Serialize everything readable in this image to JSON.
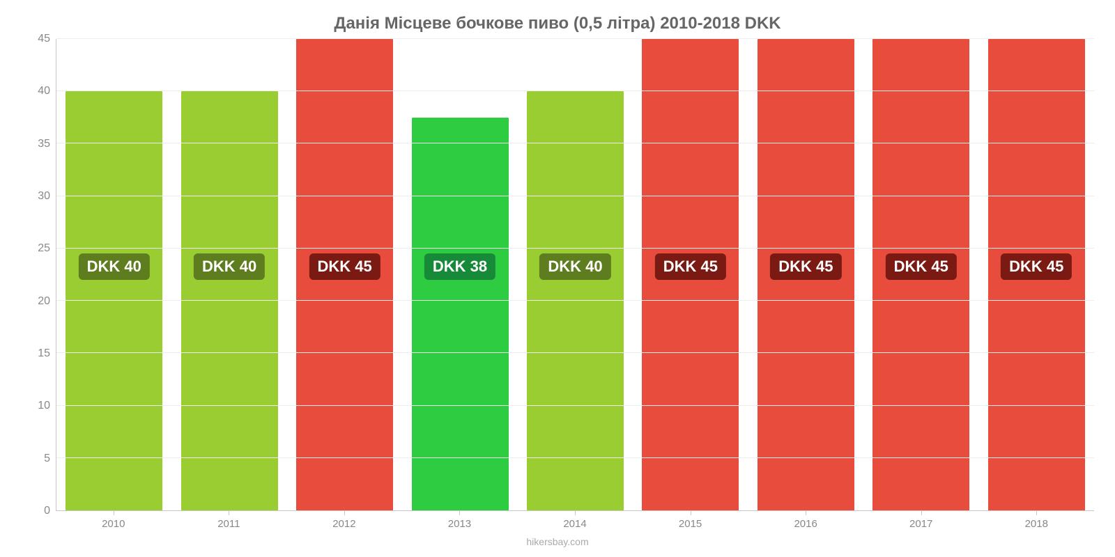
{
  "chart": {
    "type": "bar",
    "title": "Данія Місцеве бочкове пиво (0,5 літра) 2010-2018 DKK",
    "title_fontsize": 24,
    "title_color": "#666666",
    "background_color": "#ffffff",
    "axis_color": "#c7c7c7",
    "grid_color": "#ededed",
    "tick_label_color": "#888888",
    "tick_label_fontsize": 16,
    "ylim": [
      0,
      45
    ],
    "ytick_step": 5,
    "yticks": [
      0,
      5,
      10,
      15,
      20,
      25,
      30,
      35,
      40,
      45
    ],
    "bar_width": 0.84,
    "categories": [
      "2010",
      "2011",
      "2012",
      "2013",
      "2014",
      "2015",
      "2016",
      "2017",
      "2018"
    ],
    "values": [
      40,
      40,
      45,
      37.5,
      40,
      45,
      45,
      45,
      45
    ],
    "bar_colors": [
      "#9acd32",
      "#9acd32",
      "#e74c3c",
      "#2ecc40",
      "#9acd32",
      "#e74c3c",
      "#e74c3c",
      "#e74c3c",
      "#e74c3c"
    ],
    "badge_labels": [
      "DKK 40",
      "DKK 40",
      "DKK 45",
      "DKK 38",
      "DKK 40",
      "DKK 45",
      "DKK 45",
      "DKK 45",
      "DKK 45"
    ],
    "badge_colors": [
      "#5e7d1f",
      "#5e7d1f",
      "#7b1a12",
      "#178a3a",
      "#5e7d1f",
      "#7b1a12",
      "#7b1a12",
      "#7b1a12",
      "#7b1a12"
    ],
    "badge_text_color": "#ffffff",
    "badge_fontsize": 22,
    "badge_y_value": 22,
    "attribution": "hikersbay.com",
    "attribution_color": "#aaaaaa",
    "attribution_fontsize": 14
  }
}
